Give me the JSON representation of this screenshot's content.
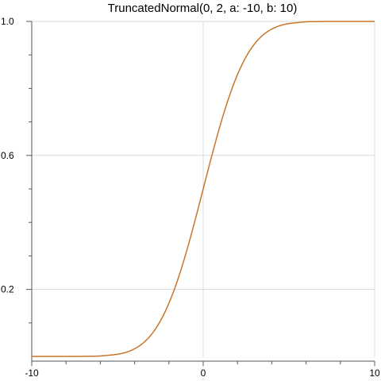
{
  "chart_data": {
    "type": "line",
    "title": "TruncatedNormal(0, 2, a: -10, b: 10)",
    "xlabel": "",
    "ylabel": "",
    "xlim": [
      -10,
      10
    ],
    "ylim": [
      0,
      1
    ],
    "grid": true,
    "x_major_ticks": [
      -10,
      0,
      10
    ],
    "x_tick_labels": [
      "-10",
      "0",
      "10"
    ],
    "x_minor_ticks": [
      -8,
      -6,
      -4,
      -2,
      2,
      4,
      6,
      8
    ],
    "y_major_ticks": [
      0.2,
      0.6,
      1.0
    ],
    "y_tick_labels": [
      "0.2",
      "0.6",
      "1.0"
    ],
    "y_minor_ticks": [
      0.1,
      0.3,
      0.4,
      0.5,
      0.7,
      0.8,
      0.9
    ],
    "line_color": "#c8752a",
    "series": [
      {
        "x": [
          -10,
          -9,
          -8,
          -7,
          -6,
          -5,
          -4.5,
          -4,
          -3.5,
          -3,
          -2.5,
          -2,
          -1.5,
          -1,
          -0.5,
          0,
          0.5,
          1,
          1.5,
          2,
          2.5,
          3,
          3.5,
          4,
          4.5,
          5,
          6,
          7,
          8,
          9,
          10
        ],
        "y": [
          0.0,
          0.0,
          0.0,
          0.0002,
          0.0013,
          0.0062,
          0.0122,
          0.0228,
          0.0401,
          0.0668,
          0.1056,
          0.1587,
          0.2266,
          0.3085,
          0.4013,
          0.5,
          0.5987,
          0.6915,
          0.7734,
          0.8413,
          0.8944,
          0.9332,
          0.9599,
          0.9772,
          0.9878,
          0.9938,
          0.9987,
          0.9998,
          1.0,
          1.0,
          1.0
        ]
      }
    ]
  }
}
